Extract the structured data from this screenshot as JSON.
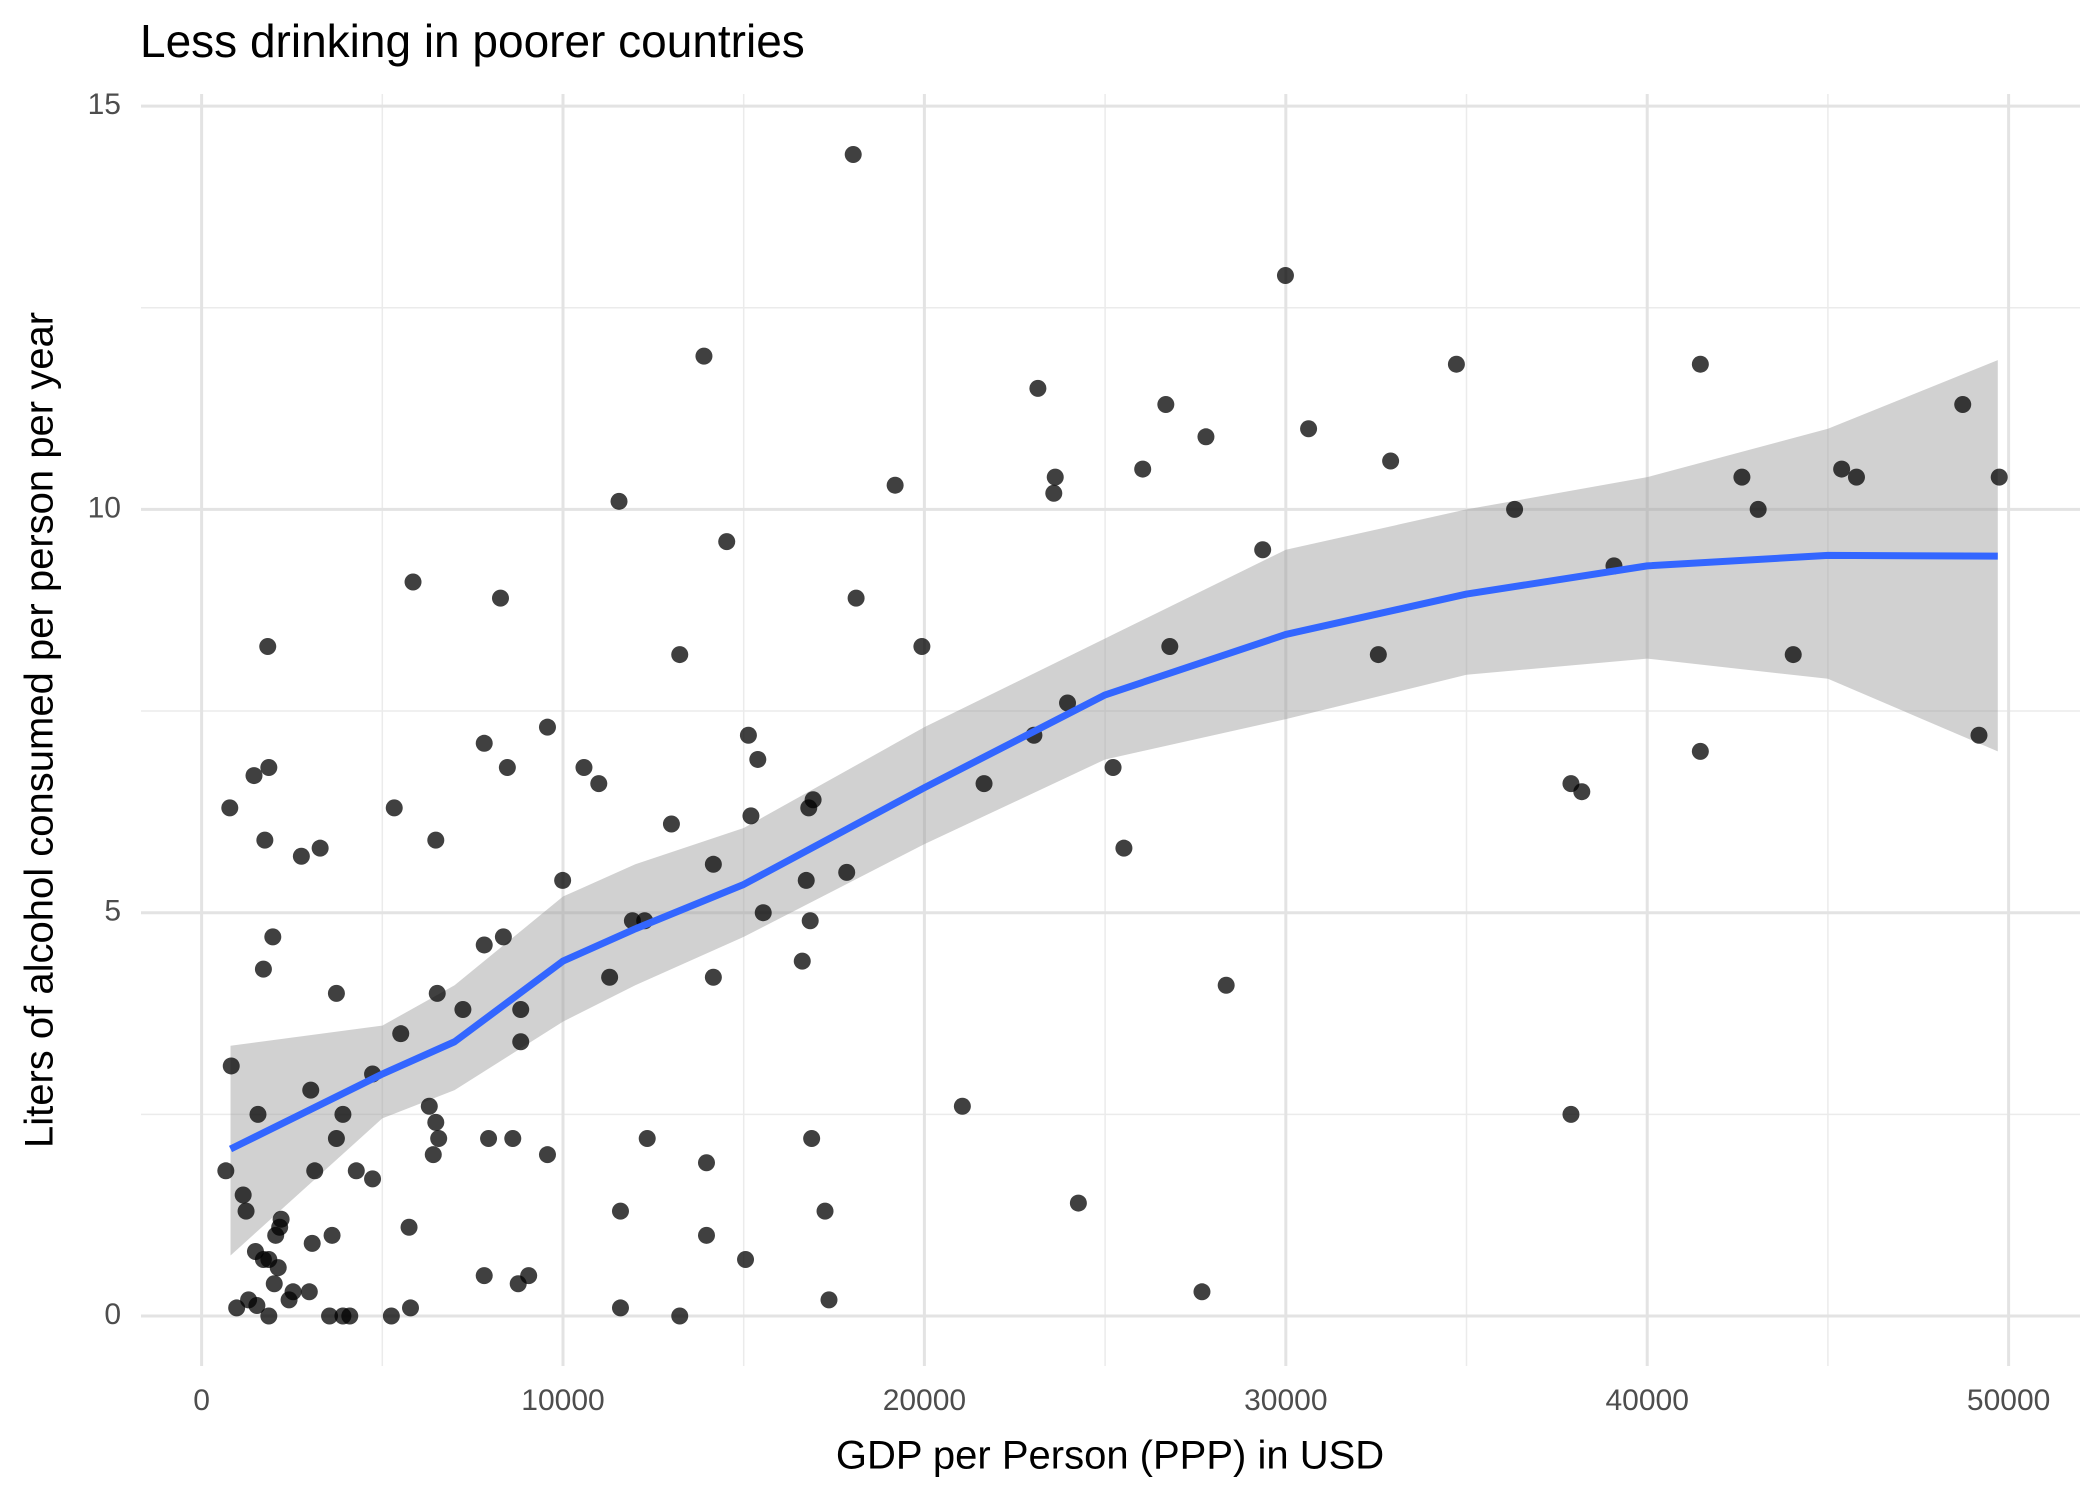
{
  "chart_data": {
    "type": "scatter",
    "title": "Less drinking in poorer countries",
    "x_label": "GDP per Person (PPP) in USD",
    "y_label": "Liters of alcohol consumed per person per year",
    "xlim": [
      -1677,
      51975
    ],
    "ylim": [
      -0.62,
      15.15
    ],
    "xticks": [
      0,
      10000,
      20000,
      30000,
      40000,
      50000
    ],
    "yticks": [
      0,
      5,
      10,
      15
    ],
    "grid": true,
    "series": [
      {
        "color": "#000000",
        "x": [
          780,
          820,
          670,
          970,
          1150,
          1230,
          1300,
          1450,
          1860,
          1490,
          1560,
          1530,
          1710,
          1750,
          1710,
          1830,
          1860,
          1860,
          1970,
          2010,
          2050,
          2120,
          2160,
          2200,
          2420,
          2530,
          2760,
          2980,
          3020,
          3060,
          3130,
          3280,
          3540,
          3610,
          3730,
          3730,
          3910,
          3910,
          4100,
          4280,
          4730,
          4730,
          5250,
          5330,
          5510,
          5740,
          5780,
          5850,
          6300,
          6410,
          6480,
          6480,
          6520,
          6560,
          7230,
          7820,
          7820,
          7820,
          7940,
          8270,
          8350,
          8460,
          8610,
          8760,
          8830,
          8830,
          9050,
          9570,
          9570,
          9990,
          10580,
          10990,
          11290,
          11550,
          11590,
          11590,
          11920,
          12260,
          12330,
          13000,
          13230,
          13230,
          13900,
          13970,
          13970,
          14160,
          14160,
          14530,
          15050,
          15130,
          15200,
          15390,
          15540,
          16620,
          16730,
          16800,
          16840,
          16880,
          16920,
          17250,
          17360,
          17850,
          18030,
          18110,
          19190,
          19930,
          21050,
          21650,
          23030,
          23140,
          23580,
          23620,
          23960,
          24260,
          25220,
          25520,
          26040,
          26680,
          26790,
          27680,
          27790,
          28350,
          29360,
          29990,
          30630,
          32560,
          32900,
          34720,
          36330,
          37890,
          37890,
          38190,
          39080,
          41470,
          41470,
          42620,
          43070,
          44040,
          45380,
          45790,
          48730,
          49180,
          49740
        ],
        "values": [
          6.3,
          3.1,
          1.8,
          0.1,
          1.5,
          1.3,
          0.2,
          6.7,
          0.7,
          0.8,
          2.5,
          0.13,
          0.7,
          5.9,
          4.3,
          8.3,
          6.8,
          0,
          4.7,
          0.4,
          1.0,
          0.6,
          1.1,
          1.2,
          0.2,
          0.3,
          5.7,
          0.3,
          2.8,
          0.9,
          1.8,
          5.8,
          0,
          1.0,
          2.2,
          4.0,
          2.5,
          0,
          0,
          1.8,
          3.0,
          1.7,
          0,
          6.3,
          3.5,
          1.1,
          0.1,
          9.1,
          2.6,
          2.0,
          2.4,
          5.9,
          4.0,
          2.2,
          3.8,
          4.6,
          7.1,
          0.5,
          2.2,
          8.9,
          4.7,
          6.8,
          2.2,
          0.4,
          3.4,
          3.8,
          0.5,
          2.0,
          7.3,
          5.4,
          6.8,
          6.6,
          4.2,
          10.1,
          1.3,
          0.1,
          4.9,
          4.9,
          2.2,
          6.1,
          0,
          8.2,
          11.9,
          1.9,
          1.0,
          4.2,
          5.6,
          9.6,
          0.7,
          7.2,
          6.2,
          6.9,
          5.0,
          4.4,
          5.4,
          6.3,
          4.9,
          2.2,
          6.4,
          1.3,
          0.2,
          5.5,
          14.4,
          8.9,
          10.3,
          8.3,
          2.6,
          6.6,
          7.2,
          11.5,
          10.2,
          10.4,
          7.6,
          1.4,
          6.8,
          5.8,
          10.5,
          11.3,
          8.3,
          0.3,
          10.9,
          4.1,
          9.5,
          12.9,
          11.0,
          8.2,
          10.6,
          11.8,
          10.0,
          6.6,
          2.5,
          6.5,
          9.3,
          11.8,
          7.0,
          10.4,
          10.0,
          8.2,
          10.5,
          10.4,
          11.3,
          7.2,
          10.4
        ]
      }
    ],
    "smooth": {
      "color": "#3366FF",
      "band_color": "#999999",
      "x": [
        800,
        5000,
        7000,
        10000,
        12000,
        15000,
        20000,
        25000,
        30000,
        35000,
        40000,
        45000,
        49700
      ],
      "values": [
        2.07,
        3.0,
        3.4,
        4.4,
        4.8,
        5.35,
        6.55,
        7.7,
        8.45,
        8.95,
        9.3,
        9.43,
        9.42
      ],
      "lower": [
        0.75,
        2.45,
        2.8,
        3.65,
        4.1,
        4.7,
        5.85,
        6.9,
        7.4,
        7.95,
        8.15,
        7.9,
        7.0
      ],
      "upper": [
        3.35,
        3.6,
        4.1,
        5.2,
        5.6,
        6.05,
        7.3,
        8.4,
        9.5,
        10.0,
        10.4,
        11.0,
        11.85
      ]
    }
  }
}
